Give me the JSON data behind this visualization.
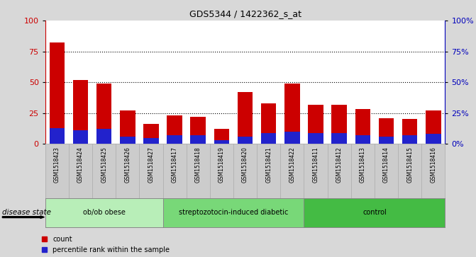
{
  "title": "GDS5344 / 1422362_s_at",
  "samples": [
    "GSM1518423",
    "GSM1518424",
    "GSM1518425",
    "GSM1518426",
    "GSM1518427",
    "GSM1518417",
    "GSM1518418",
    "GSM1518419",
    "GSM1518420",
    "GSM1518421",
    "GSM1518422",
    "GSM1518411",
    "GSM1518412",
    "GSM1518413",
    "GSM1518414",
    "GSM1518415",
    "GSM1518416"
  ],
  "red_values": [
    82,
    52,
    49,
    27,
    16,
    23,
    22,
    12,
    42,
    33,
    49,
    32,
    32,
    28,
    21,
    20,
    27
  ],
  "blue_values": [
    13,
    11,
    12,
    6,
    5,
    7,
    7,
    3,
    6,
    9,
    10,
    9,
    9,
    7,
    6,
    7,
    8
  ],
  "groups": [
    {
      "label": "ob/ob obese",
      "start": 0,
      "end": 5,
      "color": "#b8eeb8"
    },
    {
      "label": "streptozotocin-induced diabetic",
      "start": 5,
      "end": 11,
      "color": "#78d878"
    },
    {
      "label": "control",
      "start": 11,
      "end": 17,
      "color": "#44bb44"
    }
  ],
  "yticks": [
    0,
    25,
    50,
    75,
    100
  ],
  "ylim": [
    0,
    100
  ],
  "bar_color_red": "#cc0000",
  "bar_color_blue": "#2222cc",
  "left_axis_color": "#cc0000",
  "right_axis_color": "#0000bb",
  "bg_color": "#d8d8d8",
  "plot_bg_color": "#ffffff",
  "tick_bg_color": "#cccccc",
  "disease_state_label": "disease state",
  "legend_count": "count",
  "legend_percentile": "percentile rank within the sample"
}
